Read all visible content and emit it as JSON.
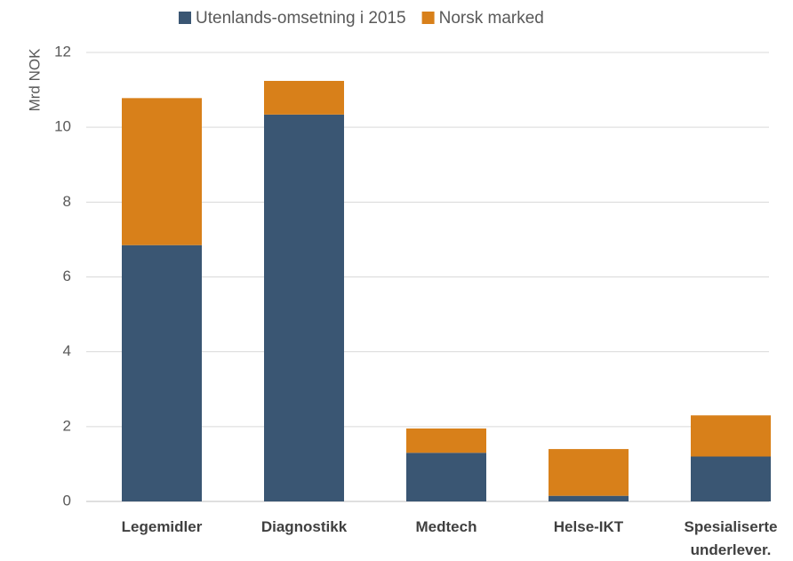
{
  "chart_data": {
    "type": "bar",
    "stacked": true,
    "y_label": "Mrd NOK",
    "categories": [
      "Legemidler",
      "Diagnostikk",
      "Medtech",
      "Helse-IKT",
      "Spesialiserte underlever."
    ],
    "series": [
      {
        "name": "Utenlands-omsetning i 2015",
        "color": "#3a5673",
        "values": [
          6.85,
          10.34,
          1.3,
          0.15,
          1.2
        ]
      },
      {
        "name": "Norsk marked",
        "color": "#d8801a",
        "values": [
          3.93,
          0.9,
          0.65,
          1.25,
          1.1
        ]
      }
    ],
    "ylim": [
      0,
      12
    ],
    "yticks": [
      0,
      2,
      4,
      6,
      8,
      10,
      12
    ],
    "grid": true,
    "legend": "top"
  }
}
